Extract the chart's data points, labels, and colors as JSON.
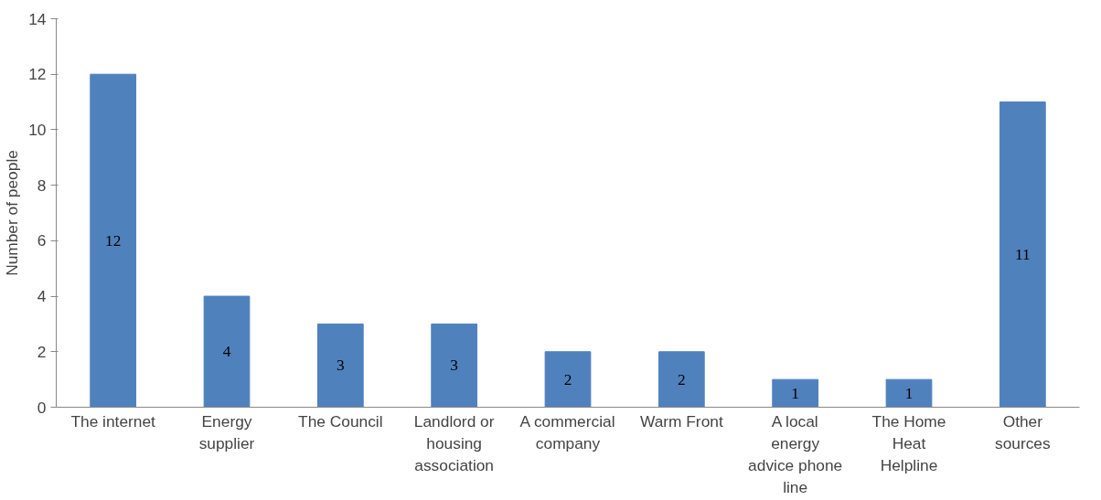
{
  "chart_data": {
    "type": "bar",
    "ylabel": "Number of people",
    "categories": [
      "The internet",
      "Energy supplier",
      "The Council",
      "Landlord or housing association",
      "A commercial company",
      "Warm Front",
      "A local energy advice phone line",
      "The Home Heat Helpline",
      "Other sources"
    ],
    "values": [
      12,
      4,
      3,
      3,
      2,
      2,
      1,
      1,
      11
    ],
    "color": "#4f81bd",
    "ylim": [
      0,
      14
    ],
    "yticks": [
      0,
      2,
      4,
      6,
      8,
      10,
      12,
      14
    ],
    "grid": false,
    "data_labels": true
  }
}
